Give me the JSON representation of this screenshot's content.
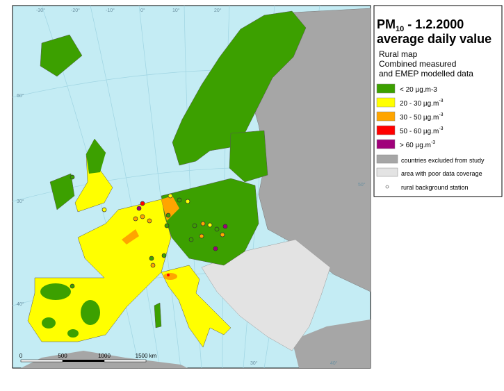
{
  "title": {
    "main": "PM",
    "sub": "10",
    "rest": " - 1.2.2000",
    "line2": "average daily value"
  },
  "subtitle": [
    "Rural map",
    "Combined measured",
    "and EMEP modelled data"
  ],
  "legend": [
    {
      "label": "<  20  µg.m-3",
      "sup": null,
      "color": "#3ca000"
    },
    {
      "label": "20 - 30  µg.m",
      "sup": "-3",
      "color": "#ffff00"
    },
    {
      "label": "30 - 50  µg.m",
      "sup": "-3",
      "color": "#ffa500"
    },
    {
      "label": "50 - 60  µg.m",
      "sup": "-3",
      "color": "#ff0000"
    },
    {
      "label": ">  60  µg.m",
      "sup": "-3",
      "color": "#a0007a"
    },
    {
      "label": "countries excluded from study",
      "sup": null,
      "color": "#a6a6a6"
    },
    {
      "label": "area with poor data coverage",
      "sup": null,
      "color": "#e3e3e3"
    },
    {
      "label": "rural background station",
      "sup": null,
      "color": null
    }
  ],
  "scale_bar": [
    "0",
    "500",
    "1000",
    "1500 km"
  ],
  "graticule": [
    "-30°",
    "-20°",
    "-10°",
    "0°",
    "10°",
    "20°",
    "30°",
    "40°",
    "60°",
    "50°",
    "40°",
    "30°"
  ]
}
